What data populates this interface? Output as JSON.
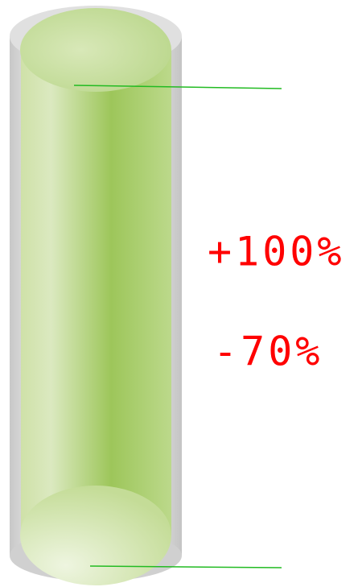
{
  "labels": [
    "+100%",
    "-70%"
  ]
}
